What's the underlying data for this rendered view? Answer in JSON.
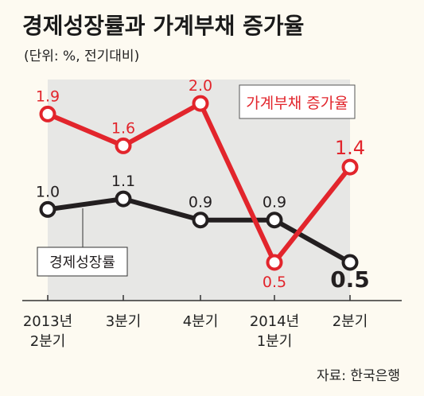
{
  "title": "경제성장률과 가계부채 증가율",
  "subtitle": "(단위: %, 전기대비)",
  "source": "자료: 한국은행",
  "colors": {
    "background": "#fdfaf1",
    "plot_panel": "#e7e7e5",
    "debt_line": "#e2252c",
    "growth_line": "#231f20"
  },
  "chart_data": {
    "type": "line",
    "categories": [
      "2013년\n2분기",
      "3분기",
      "4분기",
      "2014년\n1분기",
      "2분기"
    ],
    "series": [
      {
        "name": "가계부채 증가율",
        "values": [
          1.9,
          1.6,
          2.0,
          0.5,
          1.4
        ]
      },
      {
        "name": "경제성장률",
        "values": [
          1.0,
          1.1,
          0.9,
          0.9,
          0.5
        ]
      }
    ],
    "grid": false,
    "legend": "inline-labels"
  }
}
